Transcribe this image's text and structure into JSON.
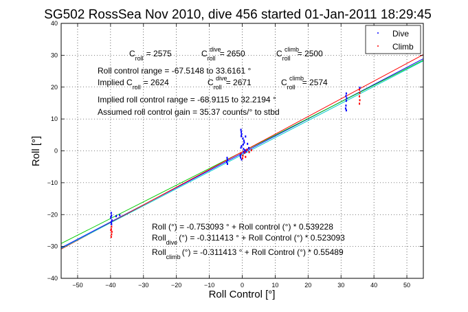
{
  "chart_data": {
    "type": "scatter",
    "title": "SG502 RossSea Nov 2010, dive 456 started 01-Jan-2011 18:29:45",
    "xlabel": "Roll Control [°]",
    "ylabel": "Roll [°]",
    "xlim": [
      -55,
      55
    ],
    "ylim": [
      -40,
      40
    ],
    "xticks": [
      -50,
      -40,
      -30,
      -20,
      -10,
      0,
      10,
      20,
      30,
      40,
      50
    ],
    "yticks": [
      -40,
      -30,
      -20,
      -10,
      0,
      10,
      20,
      30,
      40
    ],
    "grid": true,
    "legend_position": "top-right",
    "legend": [
      {
        "label": "Dive",
        "color": "#0000ff"
      },
      {
        "label": "Climb",
        "color": "#ff0000"
      }
    ],
    "series": [
      {
        "name": "Dive",
        "color": "#0000ff",
        "points": [
          [
            -39.8,
            -19.5
          ],
          [
            -39.7,
            -20.3
          ],
          [
            -39.9,
            -21.0
          ],
          [
            -39.6,
            -21.8
          ],
          [
            -39.8,
            -22.4
          ],
          [
            -39.7,
            -23.0
          ],
          [
            -39.9,
            -20.8
          ],
          [
            -38.3,
            -20.5
          ],
          [
            -37.2,
            -20.2
          ],
          [
            -4.6,
            -2.2
          ],
          [
            -4.5,
            -2.8
          ],
          [
            -4.7,
            -3.5
          ],
          [
            -4.5,
            -4.1
          ],
          [
            -0.4,
            6.6
          ],
          [
            -0.3,
            5.9
          ],
          [
            -0.2,
            5.2
          ],
          [
            -0.3,
            4.6
          ],
          [
            0.2,
            3.9
          ],
          [
            0.5,
            3.2
          ],
          [
            0.6,
            2.6
          ],
          [
            0.3,
            2.0
          ],
          [
            -0.2,
            1.5
          ],
          [
            -0.4,
            1.0
          ],
          [
            0.4,
            0.6
          ],
          [
            0.8,
            0.2
          ],
          [
            1.2,
            -0.2
          ],
          [
            0.6,
            -0.6
          ],
          [
            -0.4,
            -1.0
          ],
          [
            -0.6,
            -1.5
          ],
          [
            -0.5,
            -2.1
          ],
          [
            -0.2,
            -2.7
          ],
          [
            0.5,
            -0.3
          ],
          [
            1.5,
            0.4
          ],
          [
            2.0,
            0.9
          ],
          [
            1.6,
            2.2
          ],
          [
            1.0,
            4.5
          ],
          [
            31.6,
            18.0
          ],
          [
            31.5,
            17.2
          ],
          [
            31.7,
            16.5
          ],
          [
            31.6,
            15.7
          ],
          [
            31.5,
            14.2
          ],
          [
            31.4,
            13.3
          ],
          [
            31.6,
            12.7
          ],
          [
            35.7,
            19.8
          ]
        ]
      },
      {
        "name": "Climb",
        "color": "#ff0000",
        "points": [
          [
            -39.7,
            -23.8
          ],
          [
            -39.8,
            -24.6
          ],
          [
            -39.6,
            -25.4
          ],
          [
            -39.7,
            -26.2
          ],
          [
            -39.8,
            -27.0
          ],
          [
            -39.9,
            -24.9
          ],
          [
            -0.5,
            -0.8
          ],
          [
            0.2,
            -1.5
          ],
          [
            0.8,
            -0.5
          ],
          [
            1.4,
            0.3
          ],
          [
            2.1,
            -0.4
          ],
          [
            2.8,
            0.2
          ],
          [
            0.1,
            -2.3
          ],
          [
            1.0,
            -1.9
          ],
          [
            35.6,
            19.2
          ],
          [
            35.7,
            18.2
          ],
          [
            35.6,
            17.1
          ],
          [
            35.7,
            15.9
          ],
          [
            35.6,
            14.8
          ]
        ]
      }
    ],
    "fit_lines": [
      {
        "color": "#0000ff",
        "intercept": -0.753093,
        "slope": 0.539228
      },
      {
        "color": "#00cc00",
        "intercept": -0.311413,
        "slope": 0.523093
      },
      {
        "color": "#ff0000",
        "intercept": -0.311413,
        "slope": 0.55489
      },
      {
        "color": "#00cccc",
        "intercept": -1.2,
        "slope": 0.535
      }
    ]
  },
  "annotations": {
    "c_roll": {
      "label": "C",
      "sub": "roll",
      "value": "= 2575"
    },
    "c_roll_dive": {
      "label": "C",
      "sup": "dive",
      "sub": "roll",
      "value": "= 2650"
    },
    "c_roll_climb": {
      "label": "C",
      "sup": "climb",
      "sub": "roll",
      "value": "= 2500"
    },
    "range_text": "Roll control range = -67.5148 to 33.6161 °",
    "implied_label": "Implied C",
    "implied_sub": "roll",
    "implied_value": "= 2624",
    "implied_dive": {
      "label": "C",
      "sup": "dive",
      "sub": "roll",
      "value": "= 2671"
    },
    "implied_climb": {
      "label": "C",
      "sup": "climb",
      "sub": "roll",
      "value": "= 2574"
    },
    "implied_range_text": "Implied roll control range = -68.9115 to 32.2194 °",
    "gain_text": "Assumed roll control gain = 35.37 counts/° to stbd",
    "eq1": "Roll (°) = -0.753093 ° + Roll control (°) * 0.539228",
    "eq2_label": "Roll",
    "eq2_sub": "dive",
    "eq2_value": "(°) = -0.311413 ° + Roll Control (°) * 0.523093",
    "eq3_label": "Roll",
    "eq3_sub": "climb",
    "eq3_value": "(°) = -0.311413 ° + Roll Control (°) * 0.55489"
  }
}
